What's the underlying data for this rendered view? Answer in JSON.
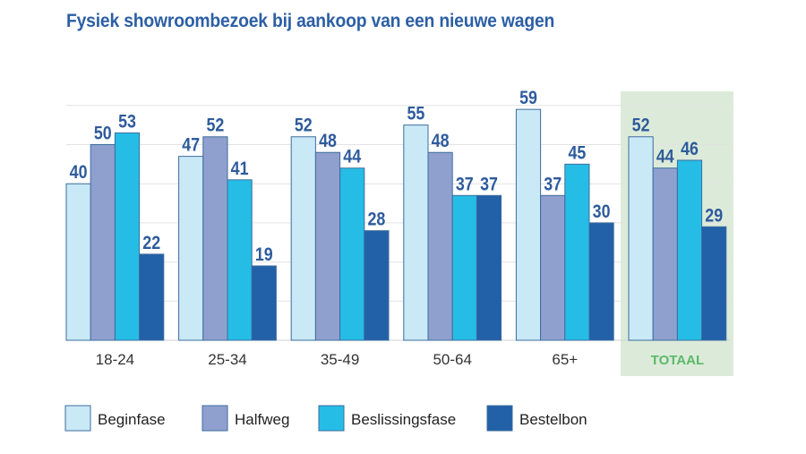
{
  "chart_data": {
    "type": "bar",
    "title": "Fysiek showroombezoek bij aankoop van een nieuwe wagen",
    "categories": [
      "18-24",
      "25-34",
      "35-49",
      "50-64",
      "65+",
      "TOTAAL"
    ],
    "highlight_category": "TOTAAL",
    "series": [
      {
        "name": "Beginfase",
        "values": [
          40,
          47,
          52,
          55,
          59,
          52
        ],
        "color": "#c9e9f7"
      },
      {
        "name": "Halfweg",
        "values": [
          50,
          52,
          48,
          48,
          37,
          44
        ],
        "color": "#8fa0cf"
      },
      {
        "name": "Beslissingsfase",
        "values": [
          53,
          41,
          44,
          37,
          45,
          46
        ],
        "color": "#25bde6"
      },
      {
        "name": "Bestelbon",
        "values": [
          22,
          19,
          28,
          37,
          30,
          29
        ],
        "color": "#2260a8"
      }
    ],
    "ylim": [
      0,
      60
    ],
    "grid": true,
    "legend_position": "bottom",
    "label_color": "#2e5b9c",
    "highlight_color": "#dcebd9"
  }
}
